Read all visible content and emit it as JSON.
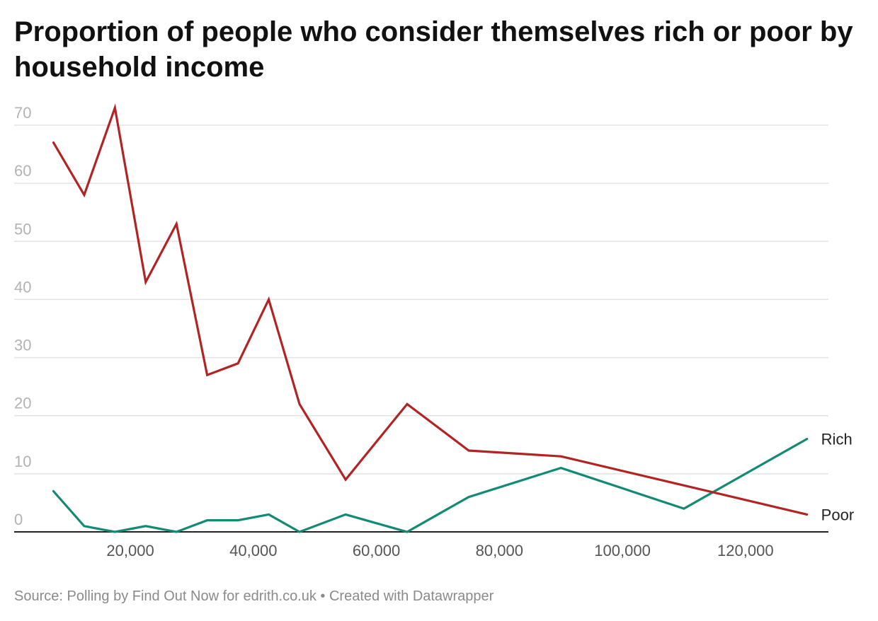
{
  "chart_data": {
    "type": "line",
    "title": "Proportion of people who consider themselves rich or poor by household income",
    "xlabel": "",
    "ylabel": "",
    "xlim": [
      0,
      135000
    ],
    "ylim": [
      0,
      70
    ],
    "y_ticks": [
      0,
      10,
      20,
      30,
      40,
      50,
      60,
      70
    ],
    "x_ticks": [
      20000,
      40000,
      60000,
      80000,
      100000,
      120000
    ],
    "x_tick_labels": [
      "20,000",
      "40,000",
      "60,000",
      "80,000",
      "100,000",
      "120,000"
    ],
    "grid": true,
    "series": [
      {
        "name": "Poor",
        "color": "#b22424",
        "x": [
          7500,
          12500,
          17500,
          22500,
          27500,
          32500,
          37500,
          42500,
          47500,
          55000,
          65000,
          75000,
          90000,
          110000,
          130000
        ],
        "values": [
          67,
          58,
          73,
          43,
          53,
          27,
          29,
          40,
          22,
          9,
          22,
          14,
          13,
          8,
          3
        ]
      },
      {
        "name": "Rich",
        "color": "#128a74",
        "x": [
          7500,
          12500,
          17500,
          22500,
          27500,
          32500,
          37500,
          42500,
          47500,
          55000,
          65000,
          75000,
          90000,
          110000,
          130000
        ],
        "values": [
          7,
          1,
          0,
          1,
          0,
          2,
          2,
          3,
          0,
          3,
          0,
          6,
          11,
          4,
          16
        ]
      }
    ]
  },
  "footer": {
    "source": "Source: Polling by Find Out Now for edrith.co.uk • Created with Datawrapper"
  }
}
